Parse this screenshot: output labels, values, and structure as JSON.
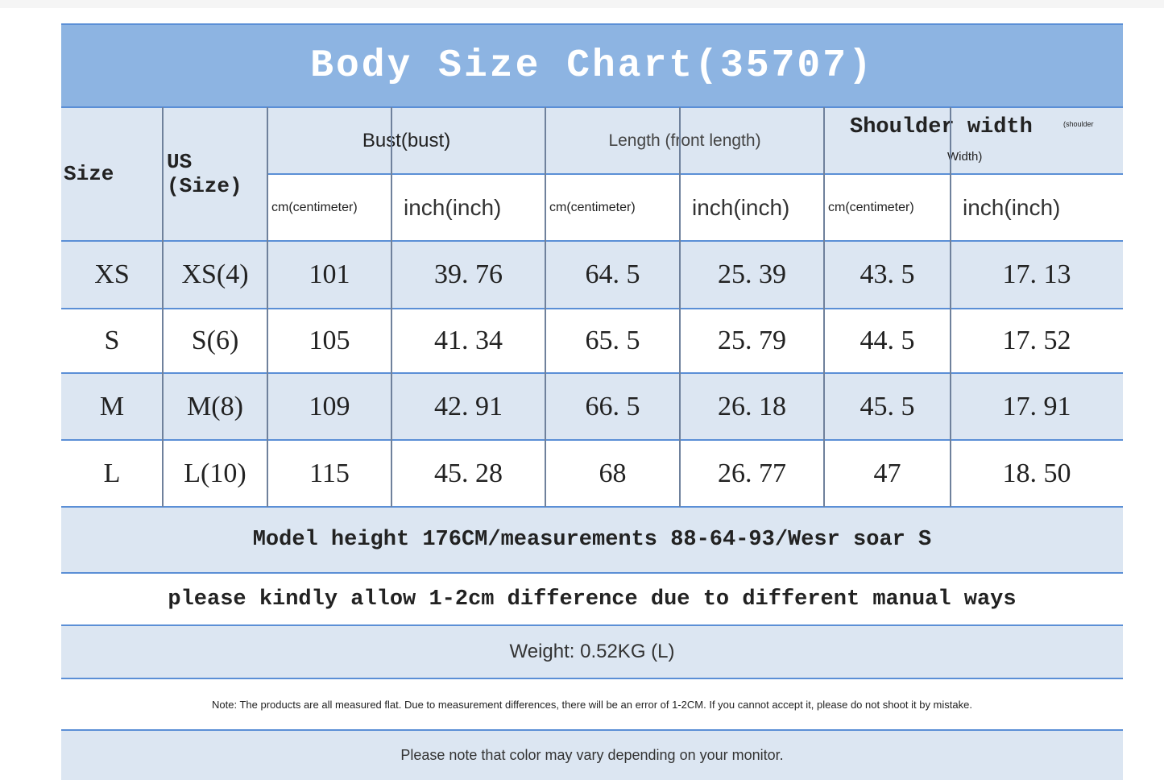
{
  "title": "Body Size Chart(35707)",
  "table": {
    "header": {
      "size": "Size",
      "us": "US (Size)",
      "groups": [
        {
          "name": "Bust(bust)",
          "sub": [
            "cm(centimeter)",
            "inch(inch)"
          ]
        },
        {
          "name": "Length (front length)",
          "sub": [
            "cm(centimeter)",
            "inch(inch)"
          ]
        },
        {
          "name": "Shoulder width",
          "note": "(shoulder",
          "name2": "Width)",
          "sub": [
            "cm(centimeter)",
            "inch(inch)"
          ]
        }
      ]
    },
    "rows": [
      [
        "XS",
        "XS(4)",
        "101",
        "39. 76",
        "64. 5",
        "25. 39",
        "43. 5",
        "17. 13"
      ],
      [
        "S",
        "S(6)",
        "105",
        "41. 34",
        "65. 5",
        "25. 79",
        "44. 5",
        "17. 52"
      ],
      [
        "M",
        "M(8)",
        "109",
        "42. 91",
        "66. 5",
        "26. 18",
        "45. 5",
        "17. 91"
      ],
      [
        "L",
        "L(10)",
        "115",
        "45. 28",
        "68",
        "26. 77",
        "47",
        "18. 50"
      ]
    ]
  },
  "notes": [
    "Model height 176CM/measurements 88-64-93/Wesr soar S",
    "please kindly allow 1-2cm difference due to different manual ways",
    "Weight: 0.52KG (L)",
    "Note: The products are all measured flat. Due to measurement differences, there will be an error of 1-2CM. If you cannot accept it, please do not shoot it by mistake.",
    "Please note that color may vary depending on your monitor."
  ]
}
